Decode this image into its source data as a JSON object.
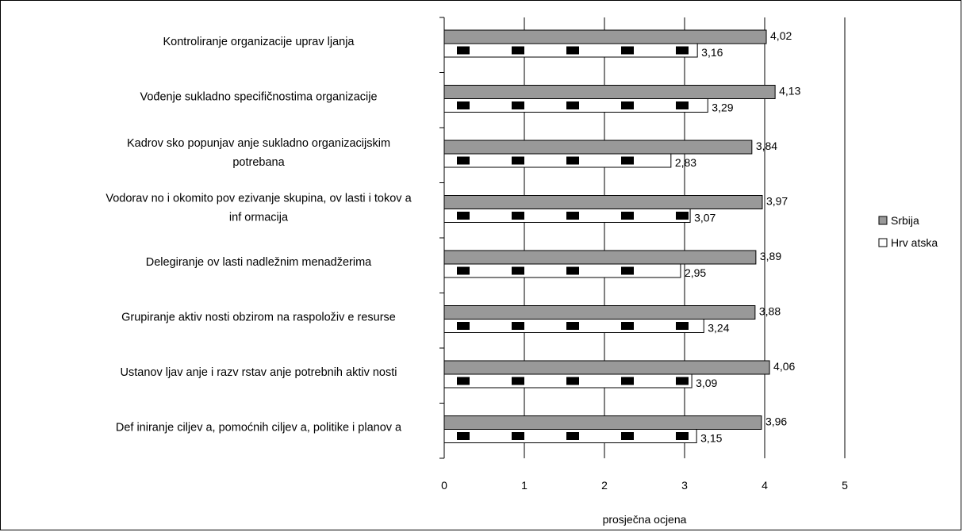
{
  "chart_data": {
    "type": "bar",
    "orientation": "horizontal",
    "categories": [
      [
        "Kontroliranje organizacije uprav ljanja"
      ],
      [
        "Vođenje sukladno specifičnostima organizacije"
      ],
      [
        "Kadrov sko popunjav anje sukladno organizacijskim",
        "potrebana"
      ],
      [
        "Vodorav no i okomito pov ezivanje skupina, ov lasti i tokov a",
        "inf ormacija"
      ],
      [
        "Delegiranje ov lasti nadležnim menadžerima"
      ],
      [
        "Grupiranje aktiv nosti obzirom na raspoloživ e resurse"
      ],
      [
        "Ustanov ljav anje i razv rstav anje potrebnih aktiv nosti"
      ],
      [
        "Def iniranje ciljev a, pomoćnih ciljev a, politike i planov a"
      ]
    ],
    "series": [
      {
        "name": "Srbija",
        "color": "#999999",
        "values": [
          4.02,
          4.13,
          3.84,
          3.97,
          3.89,
          3.88,
          4.06,
          3.96
        ],
        "labels": [
          "4,02",
          "4,13",
          "3,84",
          "3,97",
          "3,89",
          "3,88",
          "4,06",
          "3,96"
        ]
      },
      {
        "name": "Hrv atska",
        "color": "#ffffff",
        "values": [
          3.16,
          3.29,
          2.83,
          3.07,
          2.95,
          3.24,
          3.09,
          3.15
        ],
        "labels": [
          "3,16",
          "3,29",
          "2,83",
          "3,07",
          "2,95",
          "3,24",
          "3,09",
          "3,15"
        ]
      }
    ],
    "xlabel": "prosječna ocjena",
    "xlim": [
      0,
      5
    ],
    "xticks": [
      "0",
      "1",
      "2",
      "3",
      "4",
      "5"
    ],
    "grid": true,
    "legend": "right"
  }
}
